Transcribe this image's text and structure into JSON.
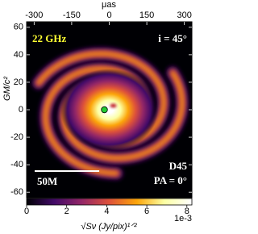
{
  "chart_data": {
    "type": "image",
    "x2label": "μas",
    "ylabel": "GM/c²",
    "xlim": [
      -64,
      64
    ],
    "ylim": [
      -64,
      64
    ],
    "yticks": [
      -60,
      -40,
      -20,
      0,
      20,
      40,
      60
    ],
    "x2lim": [
      -330,
      330
    ],
    "x2ticks": [
      -300,
      -150,
      0,
      150,
      300
    ],
    "colorbar": {
      "label": "√Sν (Jy/pix)¹ᐟ²",
      "offset_label": "1e-3",
      "lim": [
        0,
        8.25
      ],
      "ticks": [
        0,
        2,
        4,
        6,
        8
      ],
      "colors": [
        "#000004",
        "#420a68",
        "#932667",
        "#dd513a",
        "#fca50a",
        "#fcffa4",
        "#ffffff"
      ]
    },
    "annotations": {
      "frequency": "22 GHz",
      "inclination": "i = 45°",
      "model": "D45",
      "position_angle": "PA = 0°"
    },
    "scale_bar": {
      "label": "50M",
      "length": 50
    }
  }
}
